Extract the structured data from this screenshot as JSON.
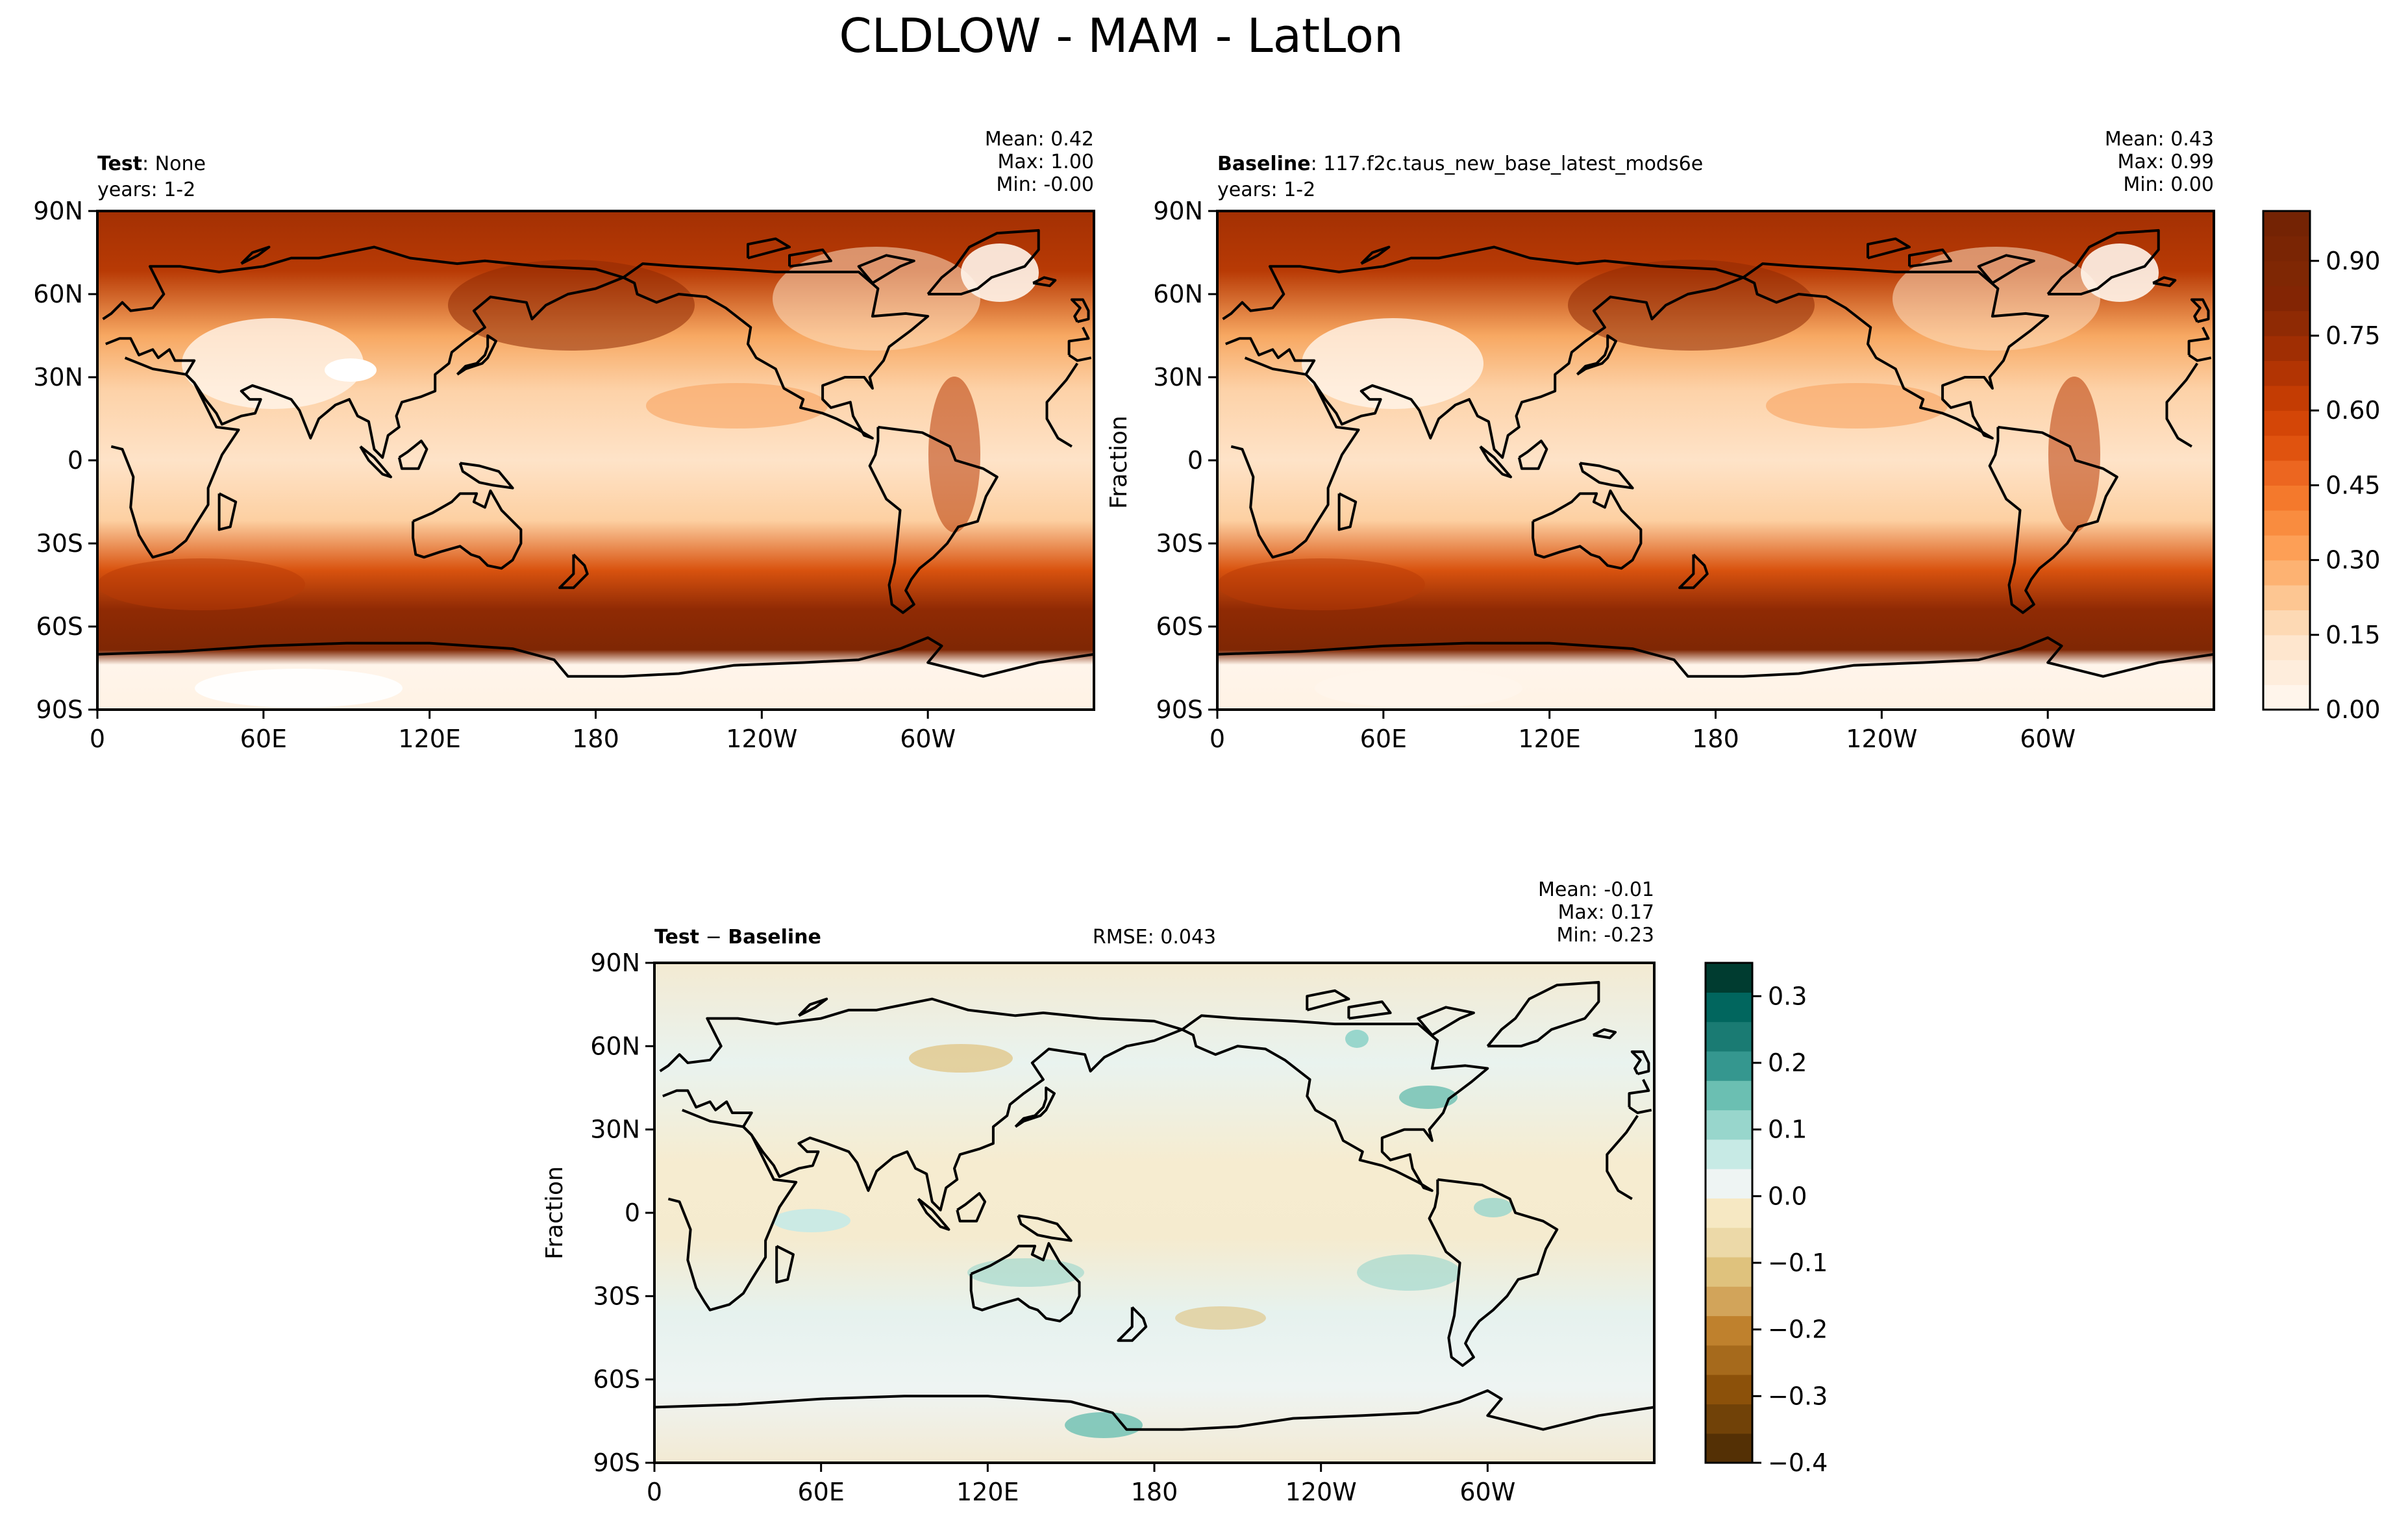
{
  "figure": {
    "title": "CLDLOW - MAM - LatLon"
  },
  "chart_data": [
    {
      "type": "heatmap",
      "panel": "test",
      "label_bold": "Test",
      "label_rest": ": None",
      "years": "years: 1-2",
      "stats": {
        "mean": "Mean:  0.42",
        "max": "Max:  1.00",
        "min": "Min: -0.00"
      },
      "variable": "CLDLOW",
      "season": "MAM",
      "xticks": [
        "0",
        "60E",
        "120E",
        "180",
        "120W",
        "60W"
      ],
      "yticks": [
        "90N",
        "60N",
        "30N",
        "0",
        "30S",
        "60S",
        "90S"
      ],
      "xlim": [
        0,
        360
      ],
      "ylim": [
        -90,
        90
      ]
    },
    {
      "type": "heatmap",
      "panel": "baseline",
      "label_bold": "Baseline",
      "label_rest": ": 117.f2c.taus_new_base_latest_mods6e",
      "years": "years: 1-2",
      "stats": {
        "mean": "Mean:  0.43",
        "max": "Max:  0.99",
        "min": "Min:  0.00"
      },
      "ylabel": "Fraction",
      "xticks": [
        "0",
        "60E",
        "120E",
        "180",
        "120W",
        "60W"
      ],
      "yticks": [
        "90N",
        "60N",
        "30N",
        "0",
        "30S",
        "60S",
        "90S"
      ],
      "xlim": [
        0,
        360
      ],
      "ylim": [
        -90,
        90
      ],
      "colorbar": {
        "levels": [
          0.0,
          0.05,
          0.1,
          0.15,
          0.2,
          0.25,
          0.3,
          0.35,
          0.4,
          0.45,
          0.5,
          0.55,
          0.6,
          0.65,
          0.7,
          0.75,
          0.8,
          0.85,
          0.9,
          0.95,
          1.0
        ],
        "colors": [
          "#fff5eb",
          "#feeddc",
          "#fee6ce",
          "#fdd9b4",
          "#fdc692",
          "#fdb272",
          "#fd9f56",
          "#f98c3f",
          "#f4792c",
          "#ec6620",
          "#e0530f",
          "#d44607",
          "#c43c03",
          "#b23403",
          "#a02e03",
          "#8f2a04",
          "#832504",
          "#7f2704",
          "#7a2504",
          "#742304"
        ],
        "ticks": [
          "0.00",
          "0.15",
          "0.30",
          "0.45",
          "0.60",
          "0.75",
          "0.90"
        ],
        "tick_values": [
          0.0,
          0.15,
          0.3,
          0.45,
          0.6,
          0.75,
          0.9
        ]
      }
    },
    {
      "type": "heatmap",
      "panel": "diff",
      "label_bold": "Test",
      "label_mid": " − ",
      "label_bold2": "Baseline",
      "rmse": "RMSE: 0.043",
      "stats": {
        "mean": "Mean: -0.01",
        "max": "Max:  0.17",
        "min": "Min: -0.23"
      },
      "ylabel": "Fraction",
      "xticks": [
        "0",
        "60E",
        "120E",
        "180",
        "120W",
        "60W"
      ],
      "yticks": [
        "90N",
        "60N",
        "30N",
        "0",
        "30S",
        "60S",
        "90S"
      ],
      "xlim": [
        0,
        360
      ],
      "ylim": [
        -90,
        90
      ],
      "colorbar": {
        "levels": [
          -0.4,
          -0.35,
          -0.3,
          -0.25,
          -0.2,
          -0.15,
          -0.1,
          -0.05,
          0.0,
          0.05,
          0.1,
          0.15,
          0.2,
          0.25,
          0.3,
          0.35
        ],
        "colors": [
          "#543005",
          "#714208",
          "#8c510a",
          "#a66a1c",
          "#bf812d",
          "#d2a45a",
          "#dfc27d",
          "#ecd9a8",
          "#f6e8c3",
          "#eef4f3",
          "#c7eae5",
          "#98d6cc",
          "#6bbfb2",
          "#35978f",
          "#1a7b73",
          "#01665e",
          "#003c30"
        ],
        "ticks": [
          "−0.4",
          "−0.3",
          "−0.2",
          "−0.1",
          "0.0",
          "0.1",
          "0.2",
          "0.3"
        ],
        "tick_values": [
          -0.4,
          -0.3,
          -0.2,
          -0.1,
          0.0,
          0.1,
          0.2,
          0.3
        ]
      }
    }
  ]
}
